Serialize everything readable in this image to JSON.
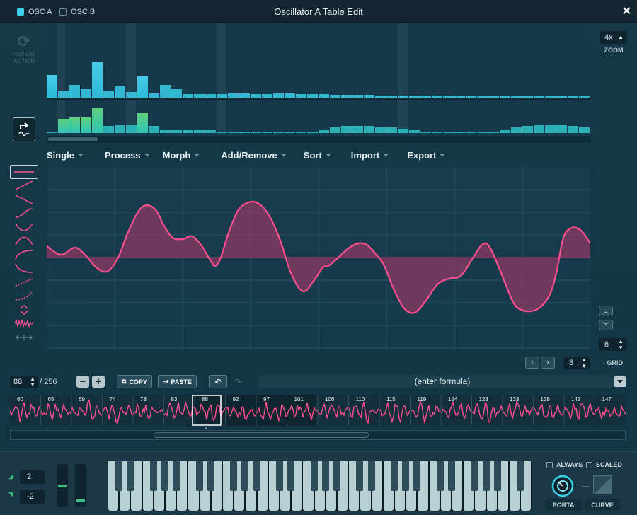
{
  "header": {
    "osc_a_label": "OSC A",
    "osc_b_label": "OSC B",
    "osc_a_checked": true,
    "osc_b_checked": false,
    "title": "Oscillator A Table Edit",
    "close_glyph": "✕"
  },
  "left_panel": {
    "repeat_label_1": "REPEAT",
    "repeat_label_2": "ACTION",
    "repeat_icon": "refresh-icon",
    "context_icon": "export-wave-icon"
  },
  "zoom": {
    "value": "4x",
    "label": "ZOOM"
  },
  "menu": [
    "Single",
    "Process",
    "Morph",
    "Add/Remove",
    "Sort",
    "Import",
    "Export"
  ],
  "tools": [
    "flat-line-tool",
    "ramp-up-tool",
    "ramp-down-tool",
    "s-curve-tool",
    "bowl-tool",
    "arc-tool",
    "ease-in-tool",
    "ease-out-tool",
    "dotted-ramp-tool",
    "dotted-curve-tool",
    "expand-tool",
    "noise-tool",
    "stretch-tool"
  ],
  "grid": {
    "value": "8",
    "label": "GRID"
  },
  "nav": {
    "value": "8"
  },
  "frame": {
    "current": "88",
    "total": "/ 256"
  },
  "buttons": {
    "minus": "−",
    "plus": "+",
    "copy": "COPY",
    "paste": "PASTE"
  },
  "formula": {
    "placeholder": "(enter formula)"
  },
  "frame_labels": [
    "60",
    "65",
    "69",
    "74",
    "78",
    "83",
    "88",
    "92",
    "97",
    "101",
    "106",
    "110",
    "115",
    "119",
    "124",
    "128",
    "133",
    "138",
    "142",
    "147"
  ],
  "selected_frame": "88",
  "octave": {
    "top": "2",
    "bottom": "-2"
  },
  "keyboard_options": {
    "always": "ALWAYS",
    "scaled": "SCALED",
    "porta": "PORTA",
    "curve": "CURVE"
  },
  "colors": {
    "accent_cyan": "#39d2e8",
    "wave_pink": "#ff4f8f",
    "wave_fill": "#8c3a63",
    "histo_green": "#43c08a"
  }
}
